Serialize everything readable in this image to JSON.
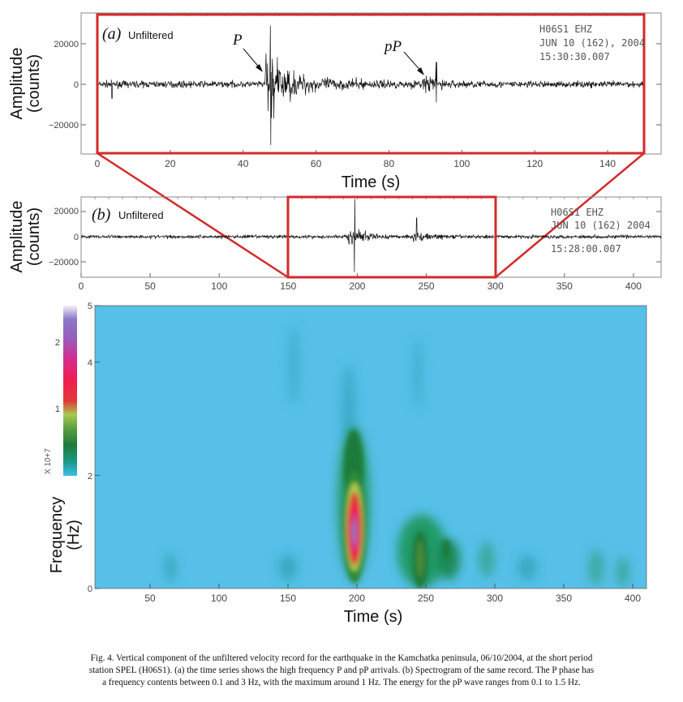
{
  "panel_a": {
    "label": "(a)",
    "filter": "Unfiltered",
    "station": "H06S1   EHZ",
    "date": "JUN 10 (162), 2004",
    "time": "15:30:30.007",
    "ylabel_line1": "Amplitude",
    "ylabel_line2": "(counts)",
    "xlabel": "Time (s)",
    "phase_p": "P",
    "phase_pp": "pP",
    "yticks": [
      "20000",
      "0",
      "−20000"
    ],
    "xticks": [
      "0",
      "20",
      "40",
      "60",
      "80",
      "100",
      "120",
      "140"
    ]
  },
  "panel_b": {
    "label": "(b)",
    "filter": "Unfiltered",
    "station": "H06S1   EHZ",
    "date": "JUN 10 (162)  2004",
    "time": "15:28:00.007",
    "ylabel_line1": "Amplitude",
    "ylabel_line2": "(counts)",
    "yticks": [
      "20000",
      "0",
      "−20000"
    ],
    "xticks": [
      "0",
      "50",
      "100",
      "150",
      "200",
      "250",
      "300",
      "350",
      "400"
    ]
  },
  "panel_c": {
    "ylabel_line1": "Frequency",
    "ylabel_line2": "(Hz)",
    "xlabel": "Time (s)",
    "yticks": [
      "0",
      "2",
      "4",
      "5"
    ],
    "xticks": [
      "50",
      "100",
      "150",
      "200",
      "250",
      "300",
      "350",
      "400"
    ],
    "colorbar_ticks": [
      "2",
      "1"
    ],
    "colorbar_unit": "X 10+7"
  },
  "colors": {
    "frame_red": "#d42a2a",
    "background_cyan": "#56c0e8"
  },
  "chart_data": [
    {
      "type": "line",
      "panel": "a",
      "xlim": [
        0,
        150
      ],
      "ylim": [
        -35000,
        35000
      ],
      "yticks": [
        20000,
        0,
        -20000
      ],
      "xticks": [
        0,
        20,
        40,
        60,
        80,
        100,
        120,
        140
      ],
      "annotations": [
        {
          "text": "P",
          "x": 46
        },
        {
          "text": "pP",
          "x": 90
        }
      ]
    },
    {
      "type": "line",
      "panel": "b",
      "xlim": [
        0,
        420
      ],
      "ylim": [
        -32000,
        32000
      ],
      "yticks": [
        20000,
        0,
        -20000
      ],
      "xticks": [
        0,
        50,
        100,
        150,
        200,
        250,
        300,
        350,
        400
      ],
      "zoom_window": [
        150,
        300
      ]
    },
    {
      "type": "heatmap",
      "panel": "c",
      "xlim": [
        10,
        410
      ],
      "ylim": [
        0,
        5
      ],
      "xticks": [
        50,
        100,
        150,
        200,
        250,
        300,
        350,
        400
      ],
      "yticks": [
        0,
        2,
        4,
        5
      ],
      "colorbar_range": [
        0,
        2.6
      ],
      "peaks": [
        {
          "t": 198,
          "f": 1.0,
          "level": 2.6
        },
        {
          "t": 248,
          "f": 0.9,
          "level": 0.6
        },
        {
          "t": 268,
          "f": 0.7,
          "level": 0.3
        },
        {
          "t": 375,
          "f": 0.5,
          "level": 0.2
        }
      ]
    }
  ],
  "caption": {
    "line1": "Fig. 4. Vertical component of the unfiltered velocity record for the earthquake in the Kamchatka peninsula, 06/10/2004, at the short period",
    "line2": "station SPEL (H06S1). (a) the time series shows the high frequency P and pP arrivals. (b) Spectrogram of the same record. The P phase has",
    "line3": "a frequency contents between 0.1 and 3 Hz, with the maximum around 1 Hz. The energy for the pP wave ranges from 0.1 to 1.5 Hz."
  }
}
